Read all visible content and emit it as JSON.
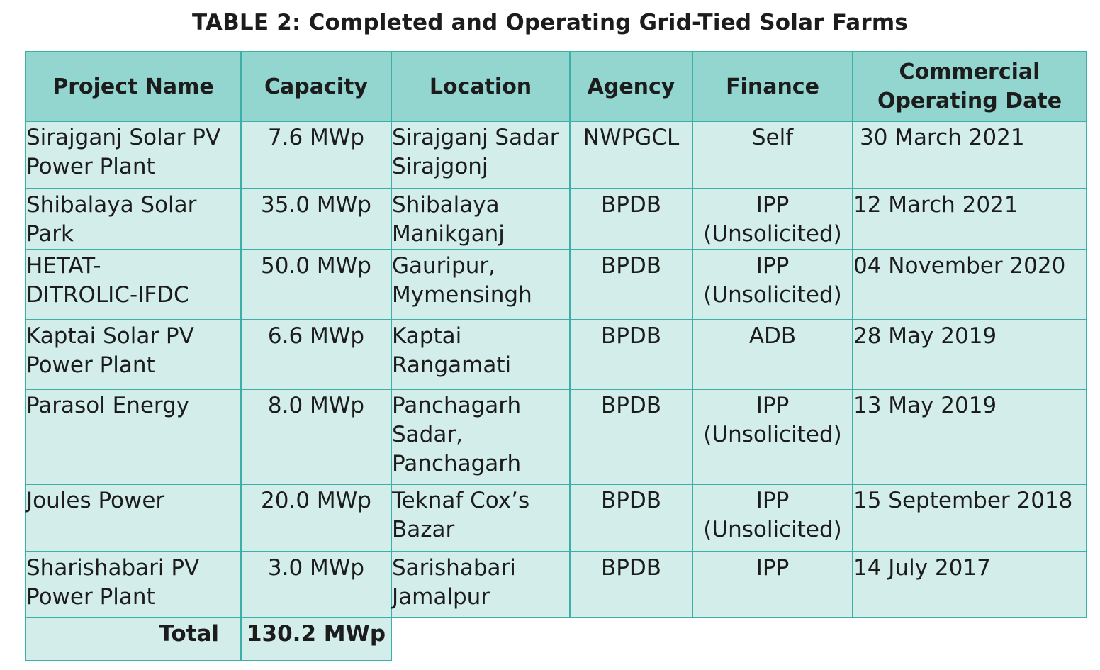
{
  "title": "TABLE 2: Completed and Operating Grid-Tied Solar Farms",
  "headers": {
    "project_name": "Project Name",
    "capacity": "Capacity",
    "location": "Location",
    "agency": "Agency",
    "finance": "Finance",
    "date_line1": "Commercial",
    "date_line2": "Operating Date"
  },
  "rows": [
    {
      "name": [
        "Sirajganj Solar PV",
        "Power Plant"
      ],
      "capacity": "7.6 MWp",
      "location": [
        "Sirajganj Sadar",
        "Sirajgonj"
      ],
      "agency": "NWPGCL",
      "finance": [
        "Self",
        ""
      ],
      "date": "30 March 2021"
    },
    {
      "name": [
        "Shibalaya Solar",
        "Park"
      ],
      "capacity": "35.0 MWp",
      "location": [
        "Shibalaya",
        "Manikganj"
      ],
      "agency": "BPDB",
      "finance": [
        "IPP",
        "(Unsolicited)"
      ],
      "date": "12 March 2021"
    },
    {
      "name": [
        "HETAT-",
        "DITROLIC-IFDC"
      ],
      "capacity": "50.0 MWp",
      "location": [
        "Gauripur,",
        "Mymensingh"
      ],
      "agency": "BPDB",
      "finance": [
        "IPP",
        "(Unsolicited)"
      ],
      "date": "04 November 2020"
    },
    {
      "name": [
        "Kaptai Solar PV",
        "Power Plant"
      ],
      "capacity": "6.6 MWp",
      "location": [
        "Kaptai",
        "Rangamati"
      ],
      "agency": "BPDB",
      "finance": [
        "ADB",
        ""
      ],
      "date": "28 May 2019"
    },
    {
      "name": [
        "Parasol Energy",
        ""
      ],
      "capacity": "8.0 MWp",
      "location": [
        "Panchagarh",
        "Sadar,",
        "Panchagarh"
      ],
      "agency": "BPDB",
      "finance": [
        "IPP",
        "(Unsolicited)"
      ],
      "date": "13 May 2019"
    },
    {
      "name": [
        "Joules Power",
        ""
      ],
      "capacity": "20.0 MWp",
      "location": [
        "Teknaf Cox’s",
        "Bazar"
      ],
      "agency": "BPDB",
      "finance": [
        "IPP",
        "(Unsolicited)"
      ],
      "date": "15 September 2018"
    },
    {
      "name": [
        "Sharishabari PV",
        "Power Plant"
      ],
      "capacity": "3.0 MWp",
      "location": [
        "Sarishabari",
        "Jamalpur"
      ],
      "agency": "BPDB",
      "finance": [
        "IPP",
        ""
      ],
      "date": "14 July 2017"
    }
  ],
  "total": {
    "label": "Total",
    "value": "130.2 MWp"
  },
  "colors": {
    "header_bg": "#93d6cf",
    "cell_bg": "#d3eeea",
    "border": "#3cb0a8"
  }
}
